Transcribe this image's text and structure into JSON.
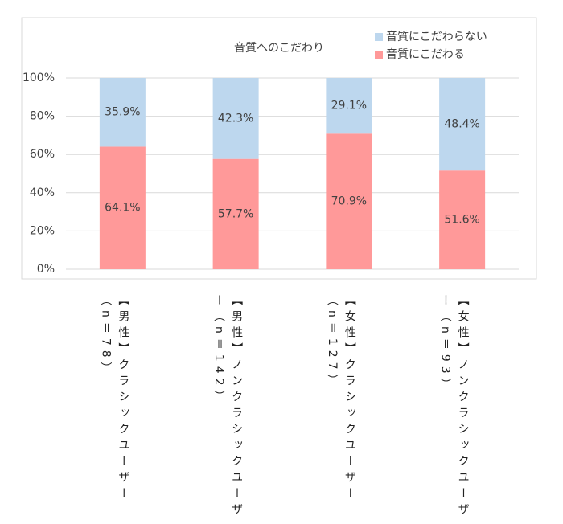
{
  "chart_data": {
    "type": "stacked-bar",
    "title": "音質へのこだわり",
    "categories": [
      "【男性】クラシックユーザー（n＝78）",
      "【男性】ノンクラシックユーザー（n＝142）",
      "【女性】クラシックユーザー（n＝127）",
      "【女性】ノンクラシックユーザー（n＝93）"
    ],
    "series": [
      {
        "name": "音質にこだわる",
        "color": "#ff9999",
        "values": [
          64.1,
          57.7,
          70.9,
          51.6
        ],
        "value_labels": [
          "64.1%",
          "57.7%",
          "70.9%",
          "51.6%"
        ]
      },
      {
        "name": "音質にこだわらない",
        "color": "#bdd7ee",
        "values": [
          35.9,
          42.3,
          29.1,
          48.4
        ],
        "value_labels": [
          "35.9%",
          "42.3%",
          "29.1%",
          "48.4%"
        ]
      }
    ],
    "ylim": [
      0,
      100
    ],
    "yticks": [
      {
        "value": 0,
        "label": "0%"
      },
      {
        "value": 20,
        "label": "20%"
      },
      {
        "value": 40,
        "label": "40%"
      },
      {
        "value": 60,
        "label": "60%"
      },
      {
        "value": 80,
        "label": "80%"
      },
      {
        "value": 100,
        "label": "100%"
      }
    ],
    "grid": true
  }
}
